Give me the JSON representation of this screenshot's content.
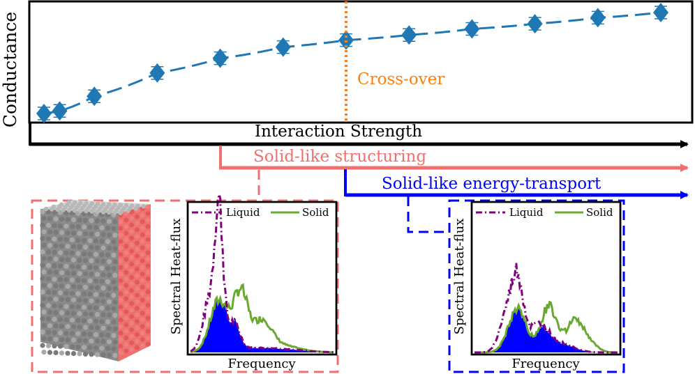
{
  "top_plot": {
    "ylabel": "Conductance",
    "crossover_label": "Cross-over",
    "colors": {
      "data": "#1f77b4",
      "crossover": "#ff7f0e"
    },
    "chart_data": {
      "type": "scatter",
      "title": "",
      "xlabel": "",
      "ylabel": "Conductance",
      "series": [
        {
          "x": [
            1,
            1.25,
            1.8,
            2.8,
            3.8,
            4.8,
            5.8,
            6.8,
            7.8,
            8.8,
            9.8,
            10.8
          ],
          "y": [
            0.08,
            0.11,
            0.28,
            0.55,
            0.72,
            0.85,
            0.93,
            0.99,
            1.06,
            1.12,
            1.19,
            1.25
          ]
        }
      ],
      "crossover_x": 5.8
    }
  },
  "arrows": {
    "interaction": {
      "label": "Interaction Strength",
      "color": "#000000"
    },
    "structuring": {
      "label": "Solid-like structuring",
      "color": "#f07070"
    },
    "energy": {
      "label": "Solid-like energy-transport",
      "color": "#0000ff"
    }
  },
  "left_panel": {
    "legend": {
      "liquid": "Liquid",
      "solid": "Solid"
    },
    "ylabel": "Spectral Heat-flux",
    "xlabel": "Frequency",
    "border_color": "#f07070"
  },
  "right_panel": {
    "legend": {
      "liquid": "Liquid",
      "solid": "Solid"
    },
    "ylabel": "Spectral Heat-flux",
    "xlabel": "Frequency",
    "border_color": "#0000ff"
  },
  "spectra_colors": {
    "liquid": "#800080",
    "solid": "#6aa832",
    "fill": "#0000ff"
  }
}
